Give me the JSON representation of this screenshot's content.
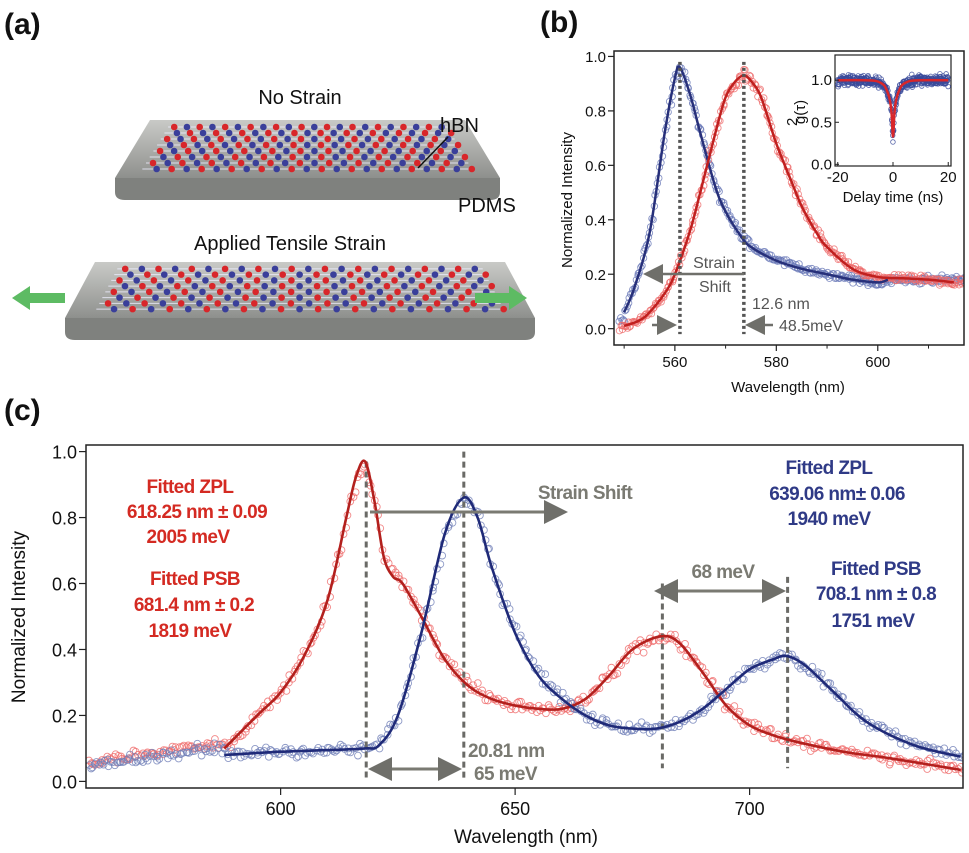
{
  "panel_labels": {
    "a": "(a)",
    "b": "(b)",
    "c": "(c)"
  },
  "illustration": {
    "top_title": "No Strain",
    "bottom_title": "Applied Tensile Strain",
    "layer_label": "hBN",
    "substrate_label": "PDMS",
    "colors": {
      "atom_red": "#d8262a",
      "atom_blue": "#3a3f9a",
      "slab": "#a9aba8",
      "arrow": "#5dbb63"
    }
  },
  "chart_data": [
    {
      "id": "b",
      "type": "scatter+line",
      "xlabel": "Wavelength (nm)",
      "ylabel": "Normalized Intensity",
      "xlim": [
        548,
        617
      ],
      "ylim": [
        -0.06,
        1.02
      ],
      "xticks": [
        560,
        580,
        600
      ],
      "yticks": [
        0.0,
        0.2,
        0.4,
        0.6,
        0.8,
        1.0
      ],
      "ytick_labels": [
        "0.0",
        "0.2",
        "0.4",
        "0.6",
        "0.8",
        "1.0"
      ],
      "grid": false,
      "series": [
        {
          "color": "#27307a",
          "point_color": "#6a79b8",
          "fit_x": [
            550,
            552,
            555,
            558,
            560,
            561,
            563,
            565,
            568,
            570,
            573,
            575,
            580,
            585,
            590,
            595,
            600,
            602
          ],
          "fit_y": [
            0.06,
            0.15,
            0.35,
            0.72,
            0.92,
            0.96,
            0.86,
            0.72,
            0.52,
            0.43,
            0.34,
            0.3,
            0.25,
            0.22,
            0.2,
            0.18,
            0.17,
            0.18
          ]
        },
        {
          "color": "#c0201f",
          "point_color": "#ee6b6b",
          "fit_x": [
            550,
            553,
            555,
            558,
            560,
            563,
            565,
            568,
            570,
            572,
            573.6,
            575,
            577,
            580,
            583,
            585,
            588,
            590,
            595,
            600,
            605,
            610,
            615
          ],
          "fit_y": [
            0.01,
            0.03,
            0.06,
            0.13,
            0.2,
            0.36,
            0.5,
            0.72,
            0.85,
            0.91,
            0.93,
            0.91,
            0.85,
            0.68,
            0.54,
            0.45,
            0.35,
            0.3,
            0.22,
            0.19,
            0.185,
            0.18,
            0.17
          ]
        }
      ],
      "markers": [
        561,
        573.6
      ],
      "annotations": {
        "shift_top": "Strain",
        "shift_bottom": "Shift",
        "delta_nm": "12.6 nm",
        "delta_mev": "48.5meV"
      },
      "inset": {
        "xlabel": "Delay time (ns)",
        "ylabel": "g²(τ)",
        "ylabel_sup": "2",
        "ylabel_main": "g(τ)",
        "xlim": [
          -21,
          21
        ],
        "ylim": [
          -0.02,
          1.3
        ],
        "xticks": [
          -20,
          0,
          20
        ],
        "yticks": [
          0.0,
          0.5,
          1.0
        ],
        "ytick_labels": [
          "0.0",
          "0.5",
          "1.0"
        ],
        "point_color": "#3a4a9a",
        "fit_color": "#d8262a",
        "fit_x": [
          -20,
          -10,
          -6,
          -4,
          -3,
          -2,
          -1.5,
          -1,
          -0.5,
          0,
          0.5,
          1,
          1.5,
          2,
          3,
          4,
          6,
          10,
          20
        ],
        "fit_y": [
          1.0,
          1.0,
          0.99,
          0.96,
          0.93,
          0.86,
          0.81,
          0.74,
          0.6,
          0.33,
          0.6,
          0.74,
          0.81,
          0.86,
          0.93,
          0.96,
          0.99,
          1.0,
          1.0
        ]
      }
    },
    {
      "id": "c",
      "type": "scatter+line",
      "xlabel": "Wavelength (nm)",
      "ylabel": "Normalized Intensity",
      "xlim": [
        558.5,
        745.5
      ],
      "ylim": [
        -0.02,
        1.02
      ],
      "xticks": [
        600,
        650,
        700
      ],
      "yticks": [
        0.0,
        0.2,
        0.4,
        0.6,
        0.8,
        1.0
      ],
      "ytick_labels": [
        "0.0",
        "0.2",
        "0.4",
        "0.6",
        "0.8",
        "1.0"
      ],
      "grid": false,
      "series": [
        {
          "color": "#b3201d",
          "point_color": "#ef6a6a",
          "fit_x": [
            588,
            595,
            600,
            605,
            610,
            614,
            616,
            618,
            620,
            622,
            624,
            626,
            630,
            635,
            640,
            645,
            650,
            655,
            660,
            665,
            670,
            675,
            681,
            685,
            690,
            695,
            700,
            705,
            710,
            720,
            730,
            745
          ],
          "fit_y": [
            0.1,
            0.2,
            0.27,
            0.38,
            0.55,
            0.8,
            0.92,
            0.97,
            0.85,
            0.68,
            0.62,
            0.6,
            0.5,
            0.37,
            0.29,
            0.25,
            0.23,
            0.22,
            0.22,
            0.25,
            0.32,
            0.4,
            0.44,
            0.42,
            0.33,
            0.23,
            0.17,
            0.14,
            0.12,
            0.09,
            0.07,
            0.035
          ]
        },
        {
          "color": "#1f2a78",
          "point_color": "#7080b8",
          "fit_x": [
            588,
            600,
            610,
            618,
            621,
            625,
            630,
            635,
            639,
            642,
            645,
            650,
            655,
            660,
            665,
            670,
            675,
            680,
            685,
            690,
            695,
            700,
            705,
            708,
            712,
            718,
            725,
            735,
            745
          ],
          "fit_y": [
            0.08,
            0.09,
            0.095,
            0.1,
            0.11,
            0.2,
            0.45,
            0.75,
            0.86,
            0.8,
            0.65,
            0.45,
            0.32,
            0.25,
            0.2,
            0.17,
            0.16,
            0.16,
            0.18,
            0.22,
            0.28,
            0.34,
            0.37,
            0.38,
            0.35,
            0.27,
            0.18,
            0.11,
            0.075
          ]
        }
      ],
      "markers": [
        618.25,
        639.06,
        681.4,
        708.1
      ],
      "annotations": {
        "red_zpl": [
          "Fitted ZPL",
          "618.25 nm ± 0.09",
          "2005 meV"
        ],
        "red_psb": [
          "Fitted PSB",
          "681.4 nm ± 0.2",
          "1819 meV"
        ],
        "blue_zpl": [
          "Fitted ZPL",
          "639.06 nm± 0.06",
          "1940 meV"
        ],
        "blue_psb": [
          "Fitted PSB",
          "708.1 nm ± 0.8",
          "1751 meV"
        ],
        "strain_shift": "Strain Shift",
        "psb_delta": "68 meV",
        "zpl_delta_nm": "20.81 nm",
        "zpl_delta_mev": "65 meV"
      },
      "colors": {
        "red_text": "#d42a22",
        "blue_text": "#2f3a86",
        "gray": "#7a7a72"
      }
    }
  ]
}
